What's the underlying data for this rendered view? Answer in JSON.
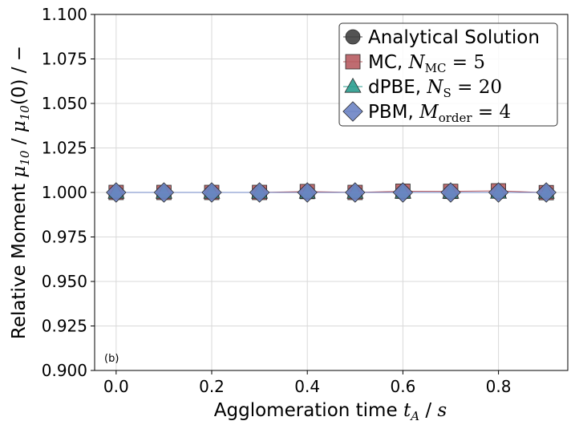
{
  "chart_data": {
    "type": "line",
    "title": "",
    "xlabel": "Agglomeration time t_A / s",
    "ylabel": "Relative Moment μ10 / μ10(0) / −",
    "xlim": [
      -0.045,
      0.945
    ],
    "ylim": [
      0.9,
      1.1
    ],
    "x_ticks": [
      0.0,
      0.2,
      0.4,
      0.6,
      0.8
    ],
    "x_tick_labels": [
      "0.0",
      "0.2",
      "0.4",
      "0.6",
      "0.8"
    ],
    "y_ticks": [
      0.9,
      0.925,
      0.95,
      0.975,
      1.0,
      1.025,
      1.05,
      1.075,
      1.1
    ],
    "y_tick_labels": [
      "0.900",
      "0.925",
      "0.950",
      "0.975",
      "1.000",
      "1.025",
      "1.050",
      "1.075",
      "1.100"
    ],
    "grid": true,
    "legend_position": "top-right",
    "annotation": "(b)",
    "x": [
      0.0,
      0.1,
      0.2,
      0.3,
      0.4,
      0.5,
      0.6,
      0.7,
      0.8,
      0.9
    ],
    "series": [
      {
        "name": "Analytical Solution",
        "marker": "circle",
        "color": "#404040",
        "values": [
          1.0,
          1.0,
          1.0,
          1.0,
          1.0,
          1.0,
          1.0,
          1.0,
          1.0,
          1.0
        ]
      },
      {
        "name": "MC, N_MC = 5",
        "marker": "square",
        "color": "#b85c62",
        "values": [
          1.0,
          1.0,
          1.0,
          1.0,
          1.0005,
          1.0,
          1.0007,
          1.0006,
          1.0009,
          0.9999
        ]
      },
      {
        "name": "dPBE, N_S = 20",
        "marker": "triangle",
        "color": "#2a9d8f",
        "values": [
          1.0,
          1.0,
          1.0,
          1.0,
          1.0,
          1.0,
          1.0,
          1.0,
          1.0,
          1.0
        ]
      },
      {
        "name": "PBM, M_order = 4",
        "marker": "diamond",
        "color": "#6d84c4",
        "values": [
          1.0,
          1.0,
          1.0,
          1.0,
          1.0,
          1.0,
          1.0,
          1.0,
          1.0,
          1.0
        ]
      }
    ]
  }
}
